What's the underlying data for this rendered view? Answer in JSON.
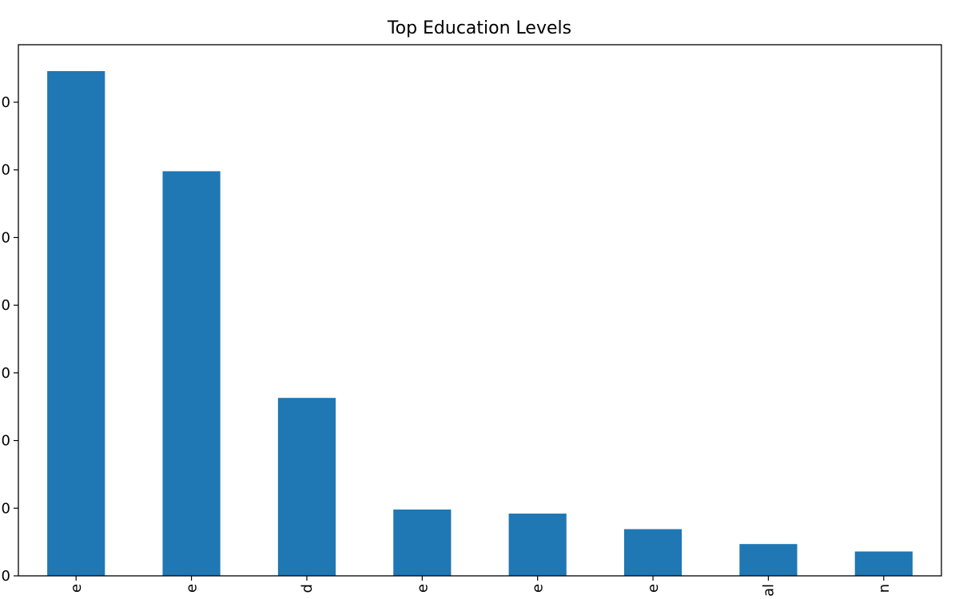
{
  "chart_data": {
    "type": "bar",
    "title": "Top Education Levels",
    "xlabel": "",
    "ylabel": "",
    "categories": [
      "e",
      "e",
      "d",
      "e",
      "e",
      "e",
      "al",
      "n"
    ],
    "y_tick_labels": [
      "0",
      "0",
      "0",
      "0",
      "0",
      "0",
      "0",
      "0"
    ],
    "values": [
      7.46,
      5.98,
      2.63,
      0.98,
      0.92,
      0.69,
      0.47,
      0.36
    ],
    "ylim": [
      0,
      7.85
    ],
    "yticks": [
      0,
      1,
      2,
      3,
      4,
      5,
      6,
      7
    ],
    "bar_color": "#1f77b4",
    "grid": false,
    "legend": "none"
  }
}
